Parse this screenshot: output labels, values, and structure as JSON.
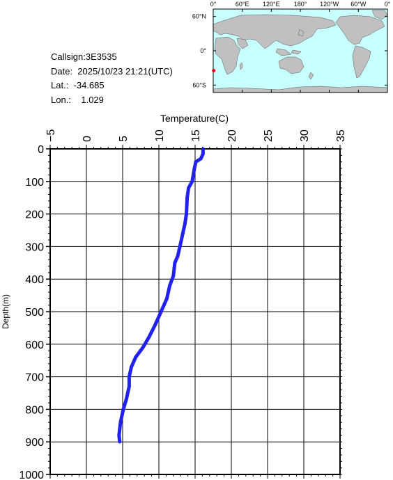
{
  "station": {
    "callsign": "Callsign:3E3535",
    "date": "Date:  2025/10/23 21:21(UTC)",
    "lat": "Lat.:  -34.685",
    "lon": "Lon.:    1.029"
  },
  "map": {
    "lon_labels": [
      "0°",
      "60°E",
      "120°E",
      "180°",
      "120°W",
      "60°W",
      "0°"
    ],
    "lat_labels": [
      "60°N",
      "0°",
      "60°S"
    ],
    "ocean_color": "#c8ffff",
    "land_color": "#c0c0c0",
    "marker_color": "#ff0000",
    "marker_lat": -34.685,
    "marker_lon": 1.029
  },
  "chart_data": {
    "type": "line",
    "title": "",
    "xlabel": "Temperature(C)",
    "ylabel": "Depth(m)",
    "xlim": [
      -5,
      35
    ],
    "ylim": [
      0,
      1000
    ],
    "y_inverted": true,
    "x_axis_position": "top",
    "grid": true,
    "x_ticks": [
      -5,
      0,
      5,
      10,
      15,
      20,
      25,
      30,
      35
    ],
    "y_ticks": [
      0,
      100,
      200,
      300,
      400,
      500,
      600,
      700,
      800,
      900,
      1000
    ],
    "line_color": "#2222ee",
    "series": [
      {
        "points": [
          [
            16.1,
            0
          ],
          [
            16.1,
            15
          ],
          [
            15.8,
            30
          ],
          [
            15.1,
            40
          ],
          [
            14.9,
            60
          ],
          [
            14.6,
            100
          ],
          [
            14.1,
            120
          ],
          [
            13.9,
            150
          ],
          [
            13.8,
            200
          ],
          [
            13.6,
            230
          ],
          [
            13.3,
            260
          ],
          [
            12.9,
            300
          ],
          [
            12.6,
            330
          ],
          [
            12.2,
            350
          ],
          [
            12.0,
            390
          ],
          [
            11.5,
            420
          ],
          [
            11.1,
            460
          ],
          [
            10.3,
            500
          ],
          [
            9.5,
            540
          ],
          [
            8.6,
            580
          ],
          [
            7.8,
            610
          ],
          [
            6.8,
            640
          ],
          [
            6.2,
            670
          ],
          [
            5.9,
            700
          ],
          [
            5.9,
            730
          ],
          [
            5.5,
            770
          ],
          [
            5.1,
            800
          ],
          [
            4.7,
            840
          ],
          [
            4.5,
            880
          ],
          [
            4.6,
            900
          ]
        ]
      }
    ]
  }
}
